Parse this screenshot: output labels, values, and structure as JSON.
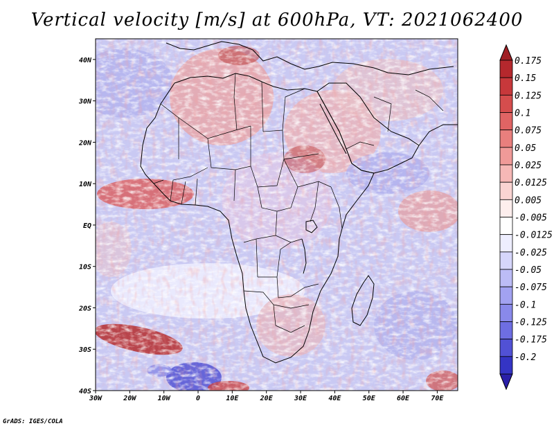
{
  "title": "Vertical velocity [m/s] at 600hPa, VT: 2021062400",
  "credit": "GrADS: IGES/COLA",
  "map": {
    "lon_range": [
      -30,
      76
    ],
    "lat_range": [
      -40,
      45
    ],
    "lon_ticks": [
      {
        "value": -30,
        "label": "30W"
      },
      {
        "value": -20,
        "label": "20W"
      },
      {
        "value": -10,
        "label": "10W"
      },
      {
        "value": 0,
        "label": "0"
      },
      {
        "value": 10,
        "label": "10E"
      },
      {
        "value": 20,
        "label": "20E"
      },
      {
        "value": 30,
        "label": "30E"
      },
      {
        "value": 40,
        "label": "40E"
      },
      {
        "value": 50,
        "label": "50E"
      },
      {
        "value": 60,
        "label": "60E"
      },
      {
        "value": 70,
        "label": "70E"
      }
    ],
    "lat_ticks": [
      {
        "value": 40,
        "label": "40N"
      },
      {
        "value": 30,
        "label": "30N"
      },
      {
        "value": 20,
        "label": "20N"
      },
      {
        "value": 10,
        "label": "10N"
      },
      {
        "value": 0,
        "label": "EQ"
      },
      {
        "value": -10,
        "label": "10S"
      },
      {
        "value": -20,
        "label": "20S"
      },
      {
        "value": -30,
        "label": "30S"
      },
      {
        "value": -40,
        "label": "40S"
      }
    ]
  },
  "colorbar": {
    "bins": [
      {
        "label": "0.175",
        "color": "#b5282d"
      },
      {
        "label": "0.15",
        "color": "#c7383b"
      },
      {
        "label": "0.125",
        "color": "#d54d4d"
      },
      {
        "label": "0.1",
        "color": "#e06464"
      },
      {
        "label": "0.075",
        "color": "#e97f7d"
      },
      {
        "label": "0.05",
        "color": "#f09a98"
      },
      {
        "label": "0.025",
        "color": "#f6b8b6"
      },
      {
        "label": "0.0125",
        "color": "#fad4d2"
      },
      {
        "label": "0.005",
        "color": "#fdeeed"
      },
      {
        "label": "-0.005",
        "color": "#ffffff"
      },
      {
        "label": "-0.0125",
        "color": "#eeeeff"
      },
      {
        "label": "-0.025",
        "color": "#d6d6fb"
      },
      {
        "label": "-0.05",
        "color": "#bcbcf6"
      },
      {
        "label": "-0.075",
        "color": "#a2a2f1"
      },
      {
        "label": "-0.1",
        "color": "#8989ea"
      },
      {
        "label": "-0.125",
        "color": "#6e6ee2"
      },
      {
        "label": "-0.175",
        "color": "#5151d5"
      },
      {
        "label": "-0.2",
        "color": "#3434c4"
      }
    ],
    "top_color": "#a01f24",
    "bottom_color": "#2a1fa8"
  }
}
